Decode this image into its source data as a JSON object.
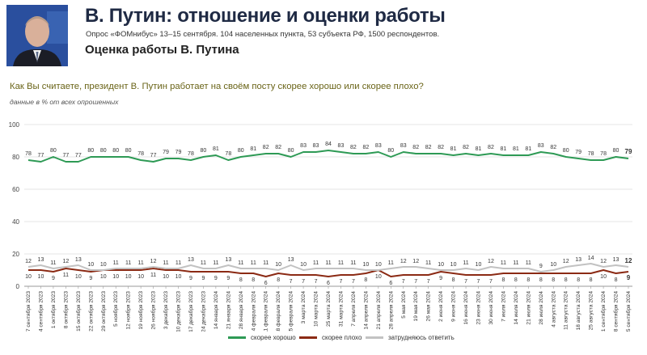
{
  "header": {
    "title": "В. Путин: отношение и оценки работы",
    "subtitle": "Опрос «ФОМнибус» 13–15 сентября. 104 населенных пункта, 53 субъекта РФ, 1500 респондентов.",
    "section_title": "Оценка работы В. Путина",
    "question": "Как Вы считаете, президент В. Путин работает на своём посту скорее хорошо или скорее плохо?",
    "units_note": "данные в % от всех опрошенных"
  },
  "chart_data": {
    "type": "line",
    "ylim": [
      0,
      100
    ],
    "yticks": [
      "0",
      "20",
      "40",
      "60",
      "80",
      "100"
    ],
    "grid": true,
    "legend_position": "bottom",
    "x": [
      "17 сентября 2023",
      "24 сентября 2023",
      "1 октября 2023",
      "8 октября 2023",
      "15 октября 2023",
      "22 октября 2023",
      "29 октября 2023",
      "5 ноября 2023",
      "12 ноября 2023",
      "19 ноября 2023",
      "26 ноября 2023",
      "3 декабря 2023",
      "10 декабря 2023",
      "17 декабря 2023",
      "24 декабря 2023",
      "14 января 2024",
      "21 января 2024",
      "28 января 2024",
      "4 февраля 2024",
      "11 февраля 2024",
      "18 февраля 2024",
      "25 февраля 2024",
      "3 марта 2024",
      "10 марта 2024",
      "25 марта 2024",
      "31 марта 2024",
      "7 апреля 2024",
      "14 апреля 2024",
      "21 апреля 2024",
      "28 апреля 2024",
      "5 мая 2024",
      "19 мая 2024",
      "26 мая 2024",
      "2 июня 2024",
      "9 июня 2024",
      "16 июня 2024",
      "23 июня 2024",
      "30 июня 2024",
      "7 июля 2024",
      "14 июля 2024",
      "21 июля 2024",
      "28 июля 2024",
      "4 августа 2024",
      "11 августа 2024",
      "18 августа 2024",
      "25 августа 2024",
      "1 сентября 2024",
      "8 сентября 2024",
      "15 сентября 2024"
    ],
    "series": [
      {
        "name": "скорее хорошо",
        "color": "#2e9a55",
        "values": [
          78,
          77,
          80,
          77,
          77,
          80,
          80,
          80,
          80,
          78,
          77,
          79,
          79,
          78,
          80,
          81,
          78,
          80,
          81,
          82,
          82,
          80,
          83,
          83,
          84,
          83,
          82,
          82,
          83,
          80,
          83,
          82,
          82,
          82,
          81,
          82,
          81,
          82,
          81,
          81,
          81,
          83,
          82,
          80,
          79,
          78,
          78,
          80,
          79
        ]
      },
      {
        "name": "скорее плохо",
        "color": "#8b2a14",
        "values": [
          10,
          10,
          9,
          11,
          10,
          9,
          10,
          10,
          10,
          10,
          11,
          10,
          10,
          9,
          9,
          9,
          9,
          8,
          8,
          6,
          8,
          7,
          7,
          7,
          6,
          7,
          7,
          8,
          10,
          6,
          7,
          7,
          7,
          9,
          8,
          7,
          7,
          7,
          8,
          8,
          8,
          8,
          8,
          8,
          8,
          8,
          10,
          8,
          9
        ]
      },
      {
        "name": "затрудняюсь ответить",
        "color": "#c2c2c2",
        "values": [
          12,
          13,
          11,
          12,
          13,
          10,
          10,
          11,
          11,
          11,
          12,
          11,
          11,
          13,
          11,
          11,
          13,
          11,
          11,
          11,
          10,
          13,
          10,
          11,
          11,
          11,
          11,
          10,
          10,
          11,
          12,
          12,
          11,
          10,
          10,
          11,
          10,
          12,
          11,
          11,
          11,
          9,
          10,
          12,
          13,
          14,
          12,
          13,
          12
        ]
      }
    ]
  },
  "legend": {
    "good": "скорее хорошо",
    "bad": "скорее плохо",
    "unsure": "затрудняюсь ответить"
  }
}
